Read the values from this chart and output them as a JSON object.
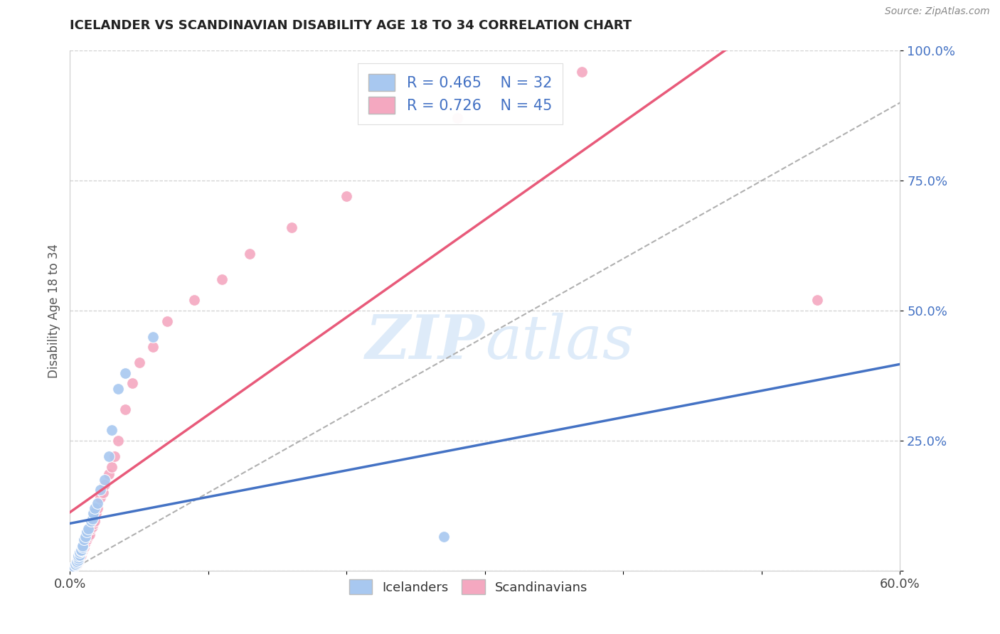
{
  "title": "ICELANDER VS SCANDINAVIAN DISABILITY AGE 18 TO 34 CORRELATION CHART",
  "source": "Source: ZipAtlas.com",
  "ylabel": "Disability Age 18 to 34",
  "xlim": [
    0.0,
    0.6
  ],
  "ylim": [
    0.0,
    1.0
  ],
  "xtick_positions": [
    0.0,
    0.1,
    0.2,
    0.3,
    0.4,
    0.5,
    0.6
  ],
  "xticklabels": [
    "0.0%",
    "",
    "",
    "",
    "",
    "",
    "60.0%"
  ],
  "ytick_positions": [
    0.0,
    0.25,
    0.5,
    0.75,
    1.0
  ],
  "yticklabels": [
    "",
    "25.0%",
    "50.0%",
    "75.0%",
    "100.0%"
  ],
  "icelanders_R": 0.465,
  "icelanders_N": 32,
  "scandinavians_R": 0.726,
  "scandinavians_N": 45,
  "icelander_color": "#a8c8f0",
  "scandinavian_color": "#f4a8c0",
  "icelander_line_color": "#4472c4",
  "scandinavian_line_color": "#e85a7a",
  "ref_line_color": "#b0b0b0",
  "watermark_color": "#c8dff5",
  "background_color": "#ffffff",
  "icelanders_x": [
    0.002,
    0.003,
    0.004,
    0.004,
    0.005,
    0.005,
    0.006,
    0.006,
    0.006,
    0.007,
    0.007,
    0.008,
    0.008,
    0.009,
    0.009,
    0.01,
    0.011,
    0.012,
    0.013,
    0.015,
    0.016,
    0.017,
    0.018,
    0.02,
    0.022,
    0.025,
    0.028,
    0.03,
    0.035,
    0.04,
    0.06,
    0.27
  ],
  "icelanders_y": [
    0.005,
    0.008,
    0.01,
    0.012,
    0.015,
    0.018,
    0.02,
    0.025,
    0.028,
    0.03,
    0.035,
    0.038,
    0.04,
    0.045,
    0.048,
    0.06,
    0.065,
    0.075,
    0.08,
    0.095,
    0.1,
    0.11,
    0.12,
    0.13,
    0.155,
    0.175,
    0.22,
    0.27,
    0.35,
    0.38,
    0.45,
    0.065
  ],
  "scandinavians_x": [
    0.002,
    0.003,
    0.004,
    0.005,
    0.005,
    0.006,
    0.006,
    0.007,
    0.007,
    0.008,
    0.008,
    0.009,
    0.009,
    0.01,
    0.01,
    0.011,
    0.012,
    0.013,
    0.014,
    0.015,
    0.016,
    0.017,
    0.018,
    0.019,
    0.02,
    0.022,
    0.024,
    0.025,
    0.028,
    0.03,
    0.032,
    0.035,
    0.04,
    0.045,
    0.05,
    0.06,
    0.07,
    0.09,
    0.11,
    0.13,
    0.16,
    0.2,
    0.28,
    0.37,
    0.54
  ],
  "scandinavians_y": [
    0.005,
    0.008,
    0.01,
    0.012,
    0.015,
    0.018,
    0.022,
    0.025,
    0.028,
    0.03,
    0.035,
    0.038,
    0.04,
    0.045,
    0.05,
    0.055,
    0.06,
    0.065,
    0.07,
    0.08,
    0.085,
    0.09,
    0.095,
    0.11,
    0.12,
    0.14,
    0.15,
    0.165,
    0.185,
    0.2,
    0.22,
    0.25,
    0.31,
    0.36,
    0.4,
    0.43,
    0.48,
    0.52,
    0.56,
    0.61,
    0.66,
    0.72,
    0.87,
    0.96,
    0.52
  ]
}
